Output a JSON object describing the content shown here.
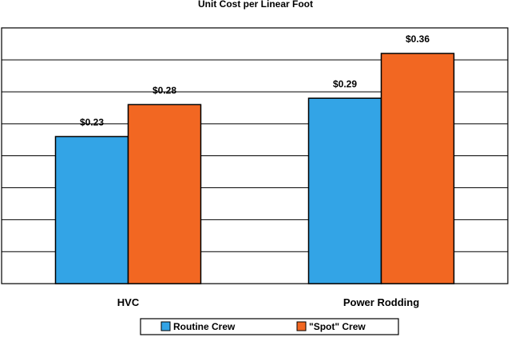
{
  "chart_data": {
    "type": "bar",
    "title": "Unit Cost per Linear Foot",
    "xlabel": "",
    "ylabel": "",
    "categories": [
      "HVC",
      "Power Rodding"
    ],
    "series": [
      {
        "name": "Routine Crew",
        "values": [
          0.23,
          0.29
        ],
        "labels": [
          "$0.23",
          "$0.29"
        ],
        "color": "#33A4E6"
      },
      {
        "name": "\"Spot\" Crew",
        "values": [
          0.28,
          0.36
        ],
        "labels": [
          "$0.28",
          "$0.36"
        ],
        "color": "#F26722"
      }
    ],
    "ylim": [
      0,
      0.4
    ],
    "ytick_step": 0.05,
    "grid": true,
    "legend": "bottom-center"
  }
}
